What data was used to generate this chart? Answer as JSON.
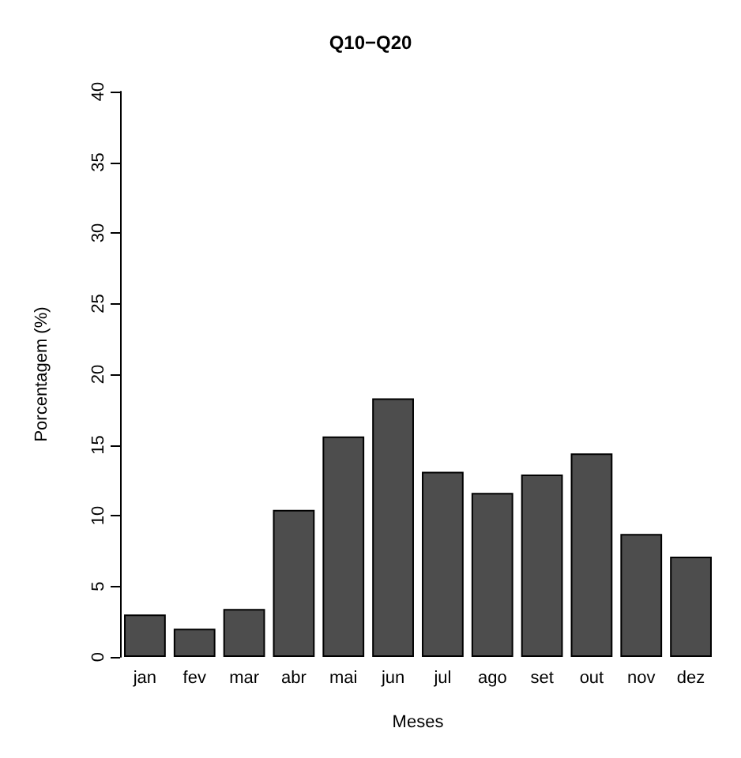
{
  "chart_data": {
    "type": "bar",
    "title": "Q10−Q20",
    "xlabel": "Meses",
    "ylabel": "Porcentagem (%)",
    "categories": [
      "jan",
      "fev",
      "mar",
      "abr",
      "mai",
      "jun",
      "jul",
      "ago",
      "set",
      "out",
      "nov",
      "dez"
    ],
    "values": [
      3.0,
      2.0,
      3.4,
      10.4,
      15.6,
      18.3,
      13.1,
      11.6,
      12.9,
      14.4,
      8.7,
      7.1
    ],
    "color": "#4d4d4d",
    "ylim": [
      0,
      40
    ],
    "yticks": [
      0,
      5,
      10,
      15,
      20,
      25,
      30,
      35,
      40
    ],
    "grid": false
  }
}
